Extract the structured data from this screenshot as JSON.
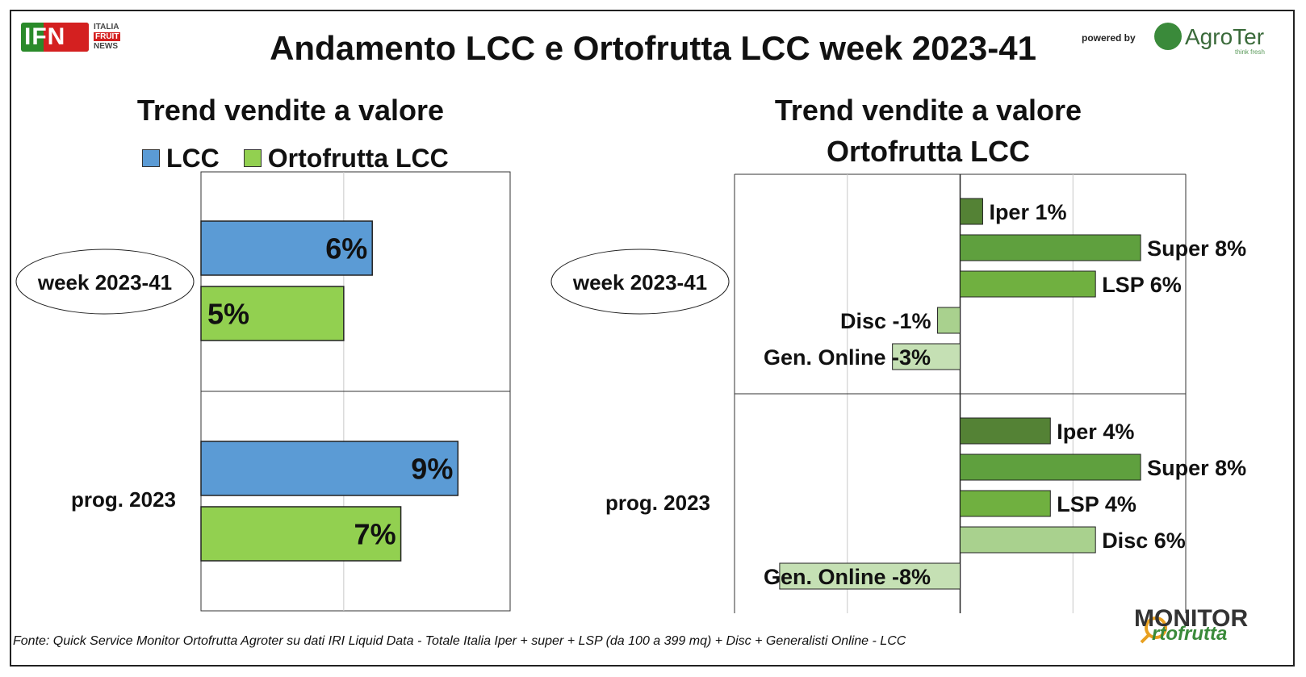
{
  "title": "Andamento LCC e Ortofrutta LCC week 2023-41",
  "logos": {
    "ifn": "IFN",
    "ifn_sub": [
      "ITALIA",
      "FRUIT",
      "NEWS"
    ],
    "powered_by": "powered by",
    "agroter": "AgroTer",
    "agroter_sub": "think fresh",
    "monitor_top": "MONITOR",
    "monitor_bottom": "rtofrutta"
  },
  "source": "Fonte: Quick Service Monitor Ortofrutta Agroter su dati IRI Liquid Data - Totale Italia Iper + super + LSP (da 100 a 399 mq) + Disc + Generalisti Online - LCC",
  "colors": {
    "lcc": "#5b9bd5",
    "ortofrutta_lcc": "#92d050",
    "iper": "#548235",
    "super": "#5fa03e",
    "lsp": "#70b040",
    "disc": "#a9d18e",
    "gen_online": "#c5e0b4"
  },
  "chart_data": [
    {
      "type": "bar",
      "orientation": "horizontal",
      "title": "Trend vendite a valore",
      "categories": [
        "week 2023-41",
        "prog. 2023"
      ],
      "series": [
        {
          "name": "LCC",
          "values": [
            6,
            9
          ],
          "labels": [
            "6%",
            "9%"
          ]
        },
        {
          "name": "Ortofrutta LCC",
          "values": [
            5,
            7
          ],
          "labels": [
            "5%",
            "7%"
          ]
        }
      ],
      "xlim": [
        0,
        10
      ],
      "unit": "%",
      "legend": "top",
      "grid": true
    },
    {
      "type": "bar",
      "orientation": "horizontal",
      "title": [
        "Trend vendite a valore",
        "Ortofrutta LCC"
      ],
      "categories": [
        "week 2023-41",
        "prog. 2023"
      ],
      "groups": [
        {
          "category": "week 2023-41",
          "bars": [
            {
              "name": "Iper",
              "value": 1,
              "label": "Iper 1%"
            },
            {
              "name": "Super",
              "value": 8,
              "label": "Super 8%"
            },
            {
              "name": "LSP",
              "value": 6,
              "label": "LSP 6%"
            },
            {
              "name": "Disc",
              "value": -1,
              "label": "Disc -1%"
            },
            {
              "name": "Gen. Online",
              "value": -3,
              "label": "Gen. Online -3%"
            }
          ]
        },
        {
          "category": "prog. 2023",
          "bars": [
            {
              "name": "Iper",
              "value": 4,
              "label": "Iper 4%"
            },
            {
              "name": "Super",
              "value": 8,
              "label": "Super 8%"
            },
            {
              "name": "LSP",
              "value": 4,
              "label": "LSP 4%"
            },
            {
              "name": "Disc",
              "value": 6,
              "label": "Disc 6%"
            },
            {
              "name": "Gen. Online",
              "value": -8,
              "label": "Gen. Online -8%"
            }
          ]
        }
      ],
      "xlim": [
        -10,
        10
      ],
      "unit": "%",
      "grid": true
    }
  ]
}
